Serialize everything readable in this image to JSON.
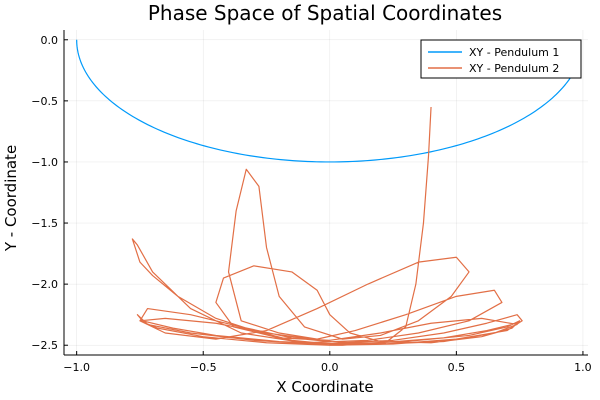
{
  "chart_data": {
    "type": "line",
    "title": "Phase Space of Spatial Coordinates",
    "xlabel": "X Coordinate",
    "ylabel": "Y - Coordinate",
    "xlim": [
      -1.05,
      1.02
    ],
    "ylim": [
      -2.58,
      0.08
    ],
    "grid": true,
    "legend_position": "top-right",
    "x_ticks": [
      {
        "value": -1.0,
        "label": "−1.0"
      },
      {
        "value": -0.5,
        "label": "−0.5"
      },
      {
        "value": 0.0,
        "label": "0.0"
      },
      {
        "value": 0.5,
        "label": "0.5"
      },
      {
        "value": 1.0,
        "label": "1.0"
      }
    ],
    "y_ticks": [
      {
        "value": 0.0,
        "label": "0.0"
      },
      {
        "value": -0.5,
        "label": "−0.5"
      },
      {
        "value": -1.0,
        "label": "−1.0"
      },
      {
        "value": -1.5,
        "label": "−1.5"
      },
      {
        "value": -2.0,
        "label": "−2.0"
      },
      {
        "value": -2.5,
        "label": "−2.5"
      }
    ],
    "series": [
      {
        "name": "XY - Pendulum 1",
        "color": "#009AFA",
        "kind": "arc",
        "theta_start_deg": 90.0,
        "theta_end_deg": -73.0,
        "radius": 1.0
      },
      {
        "name": "XY - Pendulum 2",
        "color": "#E26F46",
        "kind": "chaotic",
        "points": [
          [
            0.4,
            -0.55
          ],
          [
            0.39,
            -0.95
          ],
          [
            0.37,
            -1.5
          ],
          [
            0.34,
            -2.0
          ],
          [
            0.3,
            -2.35
          ],
          [
            0.22,
            -2.48
          ],
          [
            0.05,
            -2.5
          ],
          [
            -0.15,
            -2.46
          ],
          [
            -0.3,
            -2.38
          ],
          [
            -0.45,
            -2.28
          ],
          [
            -0.6,
            -2.1
          ],
          [
            -0.7,
            -1.93
          ],
          [
            -0.75,
            -1.82
          ],
          [
            -0.78,
            -1.63
          ],
          [
            -0.76,
            -1.68
          ],
          [
            -0.7,
            -1.9
          ],
          [
            -0.55,
            -2.2
          ],
          [
            -0.35,
            -2.4
          ],
          [
            -0.1,
            -2.48
          ],
          [
            0.15,
            -2.46
          ],
          [
            0.35,
            -2.4
          ],
          [
            0.55,
            -2.3
          ],
          [
            0.68,
            -2.15
          ],
          [
            0.65,
            -2.05
          ],
          [
            0.5,
            -2.1
          ],
          [
            0.3,
            -2.25
          ],
          [
            0.1,
            -2.38
          ],
          [
            -0.05,
            -2.45
          ],
          [
            -0.2,
            -2.4
          ],
          [
            -0.35,
            -2.3
          ],
          [
            -0.4,
            -1.9
          ],
          [
            -0.37,
            -1.4
          ],
          [
            -0.33,
            -1.06
          ],
          [
            -0.28,
            -1.2
          ],
          [
            -0.25,
            -1.7
          ],
          [
            -0.2,
            -2.1
          ],
          [
            -0.1,
            -2.35
          ],
          [
            0.05,
            -2.45
          ],
          [
            0.2,
            -2.42
          ],
          [
            0.35,
            -2.3
          ],
          [
            0.48,
            -2.1
          ],
          [
            0.55,
            -1.9
          ],
          [
            0.5,
            -1.78
          ],
          [
            0.35,
            -1.82
          ],
          [
            0.15,
            -2.0
          ],
          [
            -0.05,
            -2.2
          ],
          [
            -0.25,
            -2.38
          ],
          [
            -0.45,
            -2.45
          ],
          [
            -0.65,
            -2.4
          ],
          [
            -0.75,
            -2.3
          ],
          [
            -0.72,
            -2.2
          ],
          [
            -0.55,
            -2.25
          ],
          [
            -0.35,
            -2.35
          ],
          [
            -0.15,
            -2.44
          ],
          [
            0.05,
            -2.48
          ],
          [
            0.25,
            -2.46
          ],
          [
            0.45,
            -2.4
          ],
          [
            0.62,
            -2.32
          ],
          [
            0.74,
            -2.25
          ],
          [
            0.76,
            -2.3
          ],
          [
            0.7,
            -2.38
          ],
          [
            0.5,
            -2.45
          ],
          [
            0.25,
            -2.49
          ],
          [
            0.0,
            -2.5
          ],
          [
            -0.25,
            -2.48
          ],
          [
            -0.5,
            -2.43
          ],
          [
            -0.68,
            -2.36
          ],
          [
            -0.75,
            -2.3
          ],
          [
            -0.65,
            -2.28
          ],
          [
            -0.45,
            -2.32
          ],
          [
            -0.25,
            -2.4
          ],
          [
            0.0,
            -2.47
          ],
          [
            0.2,
            -2.49
          ],
          [
            0.45,
            -2.47
          ],
          [
            0.65,
            -2.4
          ],
          [
            0.74,
            -2.33
          ],
          [
            0.6,
            -2.28
          ],
          [
            0.4,
            -2.32
          ],
          [
            0.2,
            -2.4
          ],
          [
            0.0,
            -2.46
          ],
          [
            -0.2,
            -2.44
          ],
          [
            -0.38,
            -2.35
          ],
          [
            -0.45,
            -2.15
          ],
          [
            -0.42,
            -1.95
          ],
          [
            -0.3,
            -1.85
          ],
          [
            -0.15,
            -1.9
          ],
          [
            -0.05,
            -2.05
          ],
          [
            0.0,
            -2.25
          ],
          [
            0.08,
            -2.4
          ],
          [
            0.2,
            -2.47
          ],
          [
            0.4,
            -2.48
          ],
          [
            0.6,
            -2.43
          ],
          [
            0.72,
            -2.36
          ],
          [
            0.75,
            -2.3
          ],
          [
            0.7,
            -2.35
          ],
          [
            0.55,
            -2.42
          ],
          [
            0.3,
            -2.47
          ],
          [
            0.05,
            -2.49
          ],
          [
            -0.2,
            -2.47
          ],
          [
            -0.45,
            -2.42
          ],
          [
            -0.62,
            -2.36
          ],
          [
            -0.74,
            -2.3
          ],
          [
            -0.76,
            -2.25
          ],
          [
            -0.72,
            -2.33
          ],
          [
            -0.55,
            -2.4
          ],
          [
            -0.3,
            -2.46
          ],
          [
            -0.05,
            -2.49
          ],
          [
            0.2,
            -2.48
          ],
          [
            0.45,
            -2.44
          ],
          [
            0.62,
            -2.38
          ],
          [
            0.72,
            -2.33
          ]
        ]
      }
    ]
  }
}
